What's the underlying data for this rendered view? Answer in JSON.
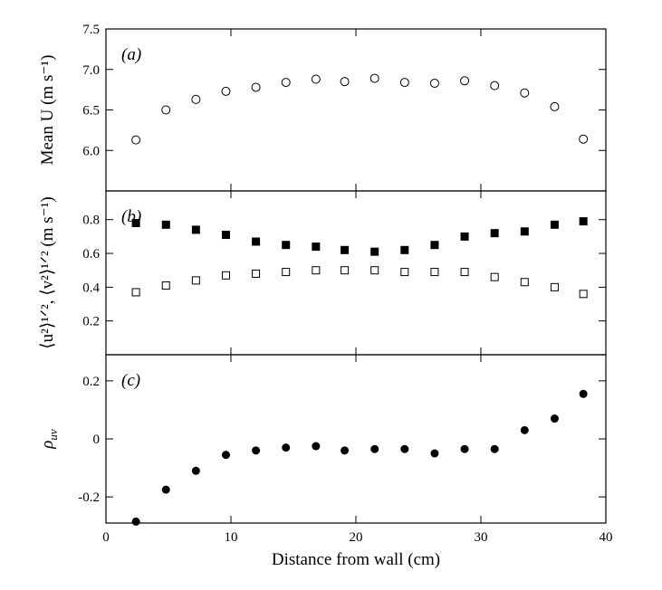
{
  "chart_data": [
    {
      "type": "scatter",
      "panel_label": "(a)",
      "ylabel": "Mean U (m s⁻¹)",
      "xlabel": "",
      "ylim": [
        5.5,
        7.5
      ],
      "yticks": [
        "5.5",
        "6.0",
        "6.5",
        "7.0",
        "7.5"
      ],
      "xlim": [
        0,
        40
      ],
      "grid": false,
      "series": [
        {
          "marker": "open-circle",
          "x": [
            2.4,
            4.8,
            7.2,
            9.6,
            12.0,
            14.4,
            16.8,
            19.1,
            21.5,
            23.9,
            26.3,
            28.7,
            31.1,
            33.5,
            35.9,
            38.2
          ],
          "values": [
            6.13,
            6.5,
            6.63,
            6.73,
            6.78,
            6.84,
            6.88,
            6.85,
            6.89,
            6.84,
            6.83,
            6.86,
            6.8,
            6.71,
            6.54,
            6.14
          ]
        }
      ]
    },
    {
      "type": "scatter",
      "panel_label": "(b)",
      "ylabel": "⟨u²⟩¹ᐟ², ⟨v²⟩¹ᐟ² (m s⁻¹)",
      "xlabel": "",
      "ylim": [
        0,
        0.97
      ],
      "yticks": [
        "0.2",
        "0.4",
        "0.6",
        "0.8"
      ],
      "xlim": [
        0,
        40
      ],
      "grid": false,
      "series": [
        {
          "marker": "filled-square",
          "x": [
            2.4,
            4.8,
            7.2,
            9.6,
            12.0,
            14.4,
            16.8,
            19.1,
            21.5,
            23.9,
            26.3,
            28.7,
            31.1,
            33.5,
            35.9,
            38.2
          ],
          "values": [
            0.78,
            0.77,
            0.74,
            0.71,
            0.67,
            0.65,
            0.64,
            0.62,
            0.61,
            0.62,
            0.65,
            0.7,
            0.72,
            0.73,
            0.77,
            0.79
          ]
        },
        {
          "marker": "open-square",
          "x": [
            2.4,
            4.8,
            7.2,
            9.6,
            12.0,
            14.4,
            16.8,
            19.1,
            21.5,
            23.9,
            26.3,
            28.7,
            31.1,
            33.5,
            35.9,
            38.2
          ],
          "values": [
            0.37,
            0.41,
            0.44,
            0.47,
            0.48,
            0.49,
            0.5,
            0.5,
            0.5,
            0.49,
            0.49,
            0.49,
            0.46,
            0.43,
            0.4,
            0.36
          ]
        }
      ]
    },
    {
      "type": "scatter",
      "panel_label": "(c)",
      "ylabel": "ρuv",
      "ylabel_main": "ρ",
      "ylabel_sub": "uv",
      "xlabel": "Distance from wall (cm)",
      "ylim": [
        -0.29,
        0.29
      ],
      "yticks": [
        "-0.2",
        "0",
        "0.2"
      ],
      "xlim": [
        0,
        40
      ],
      "xticks": [
        "0",
        "10",
        "20",
        "30",
        "40"
      ],
      "grid": false,
      "series": [
        {
          "marker": "filled-circle",
          "x": [
            2.4,
            4.8,
            7.2,
            9.6,
            12.0,
            14.4,
            16.8,
            19.1,
            21.5,
            23.9,
            26.3,
            28.7,
            31.1,
            33.5,
            35.9,
            38.2
          ],
          "values": [
            -0.285,
            -0.175,
            -0.11,
            -0.055,
            -0.04,
            -0.03,
            -0.025,
            -0.04,
            -0.035,
            -0.035,
            -0.05,
            -0.035,
            -0.035,
            0.03,
            0.07,
            0.155
          ]
        }
      ]
    }
  ]
}
